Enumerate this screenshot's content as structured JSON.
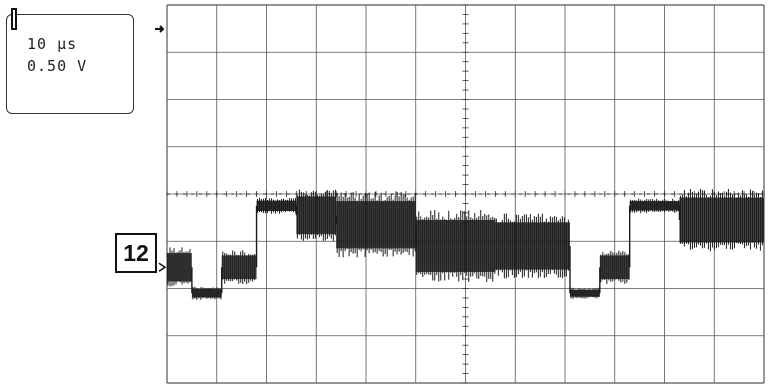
{
  "readout": {
    "timebase": "10 µs",
    "volts_per_div": "0.50 V"
  },
  "channel_label": "12",
  "chart_data": {
    "type": "line",
    "title": "",
    "xlabel": "",
    "ylabel": "",
    "grid": true,
    "divisions": {
      "x": 12,
      "y": 8
    },
    "xlim": [
      0,
      12
    ],
    "ylim": [
      -4,
      4
    ],
    "trigger_level_div": 0.0,
    "series": [
      {
        "color": "#1a1a1a",
        "segments": [
          {
            "x0": 0.0,
            "x1": 0.5,
            "level": -1.55,
            "noise": 0.6
          },
          {
            "x0": 0.5,
            "x1": 1.1,
            "level": -2.1,
            "noise": 0.18
          },
          {
            "x0": 1.1,
            "x1": 1.8,
            "level": -1.55,
            "noise": 0.5
          },
          {
            "x0": 1.8,
            "x1": 2.6,
            "level": -0.25,
            "noise": 0.22
          },
          {
            "x0": 2.6,
            "x1": 3.4,
            "level": -0.45,
            "noise": 0.8
          },
          {
            "x0": 3.4,
            "x1": 5.0,
            "level": -0.65,
            "noise": 1.0
          },
          {
            "x0": 5.0,
            "x1": 6.6,
            "level": -1.1,
            "noise": 1.1
          },
          {
            "x0": 6.6,
            "x1": 8.1,
            "level": -1.1,
            "noise": 1.0
          },
          {
            "x0": 8.1,
            "x1": 8.7,
            "level": -2.1,
            "noise": 0.15
          },
          {
            "x0": 8.7,
            "x1": 9.3,
            "level": -1.55,
            "noise": 0.5
          },
          {
            "x0": 9.3,
            "x1": 10.3,
            "level": -0.25,
            "noise": 0.2
          },
          {
            "x0": 10.3,
            "x1": 12.0,
            "level": -0.55,
            "noise": 0.95
          }
        ]
      }
    ]
  }
}
